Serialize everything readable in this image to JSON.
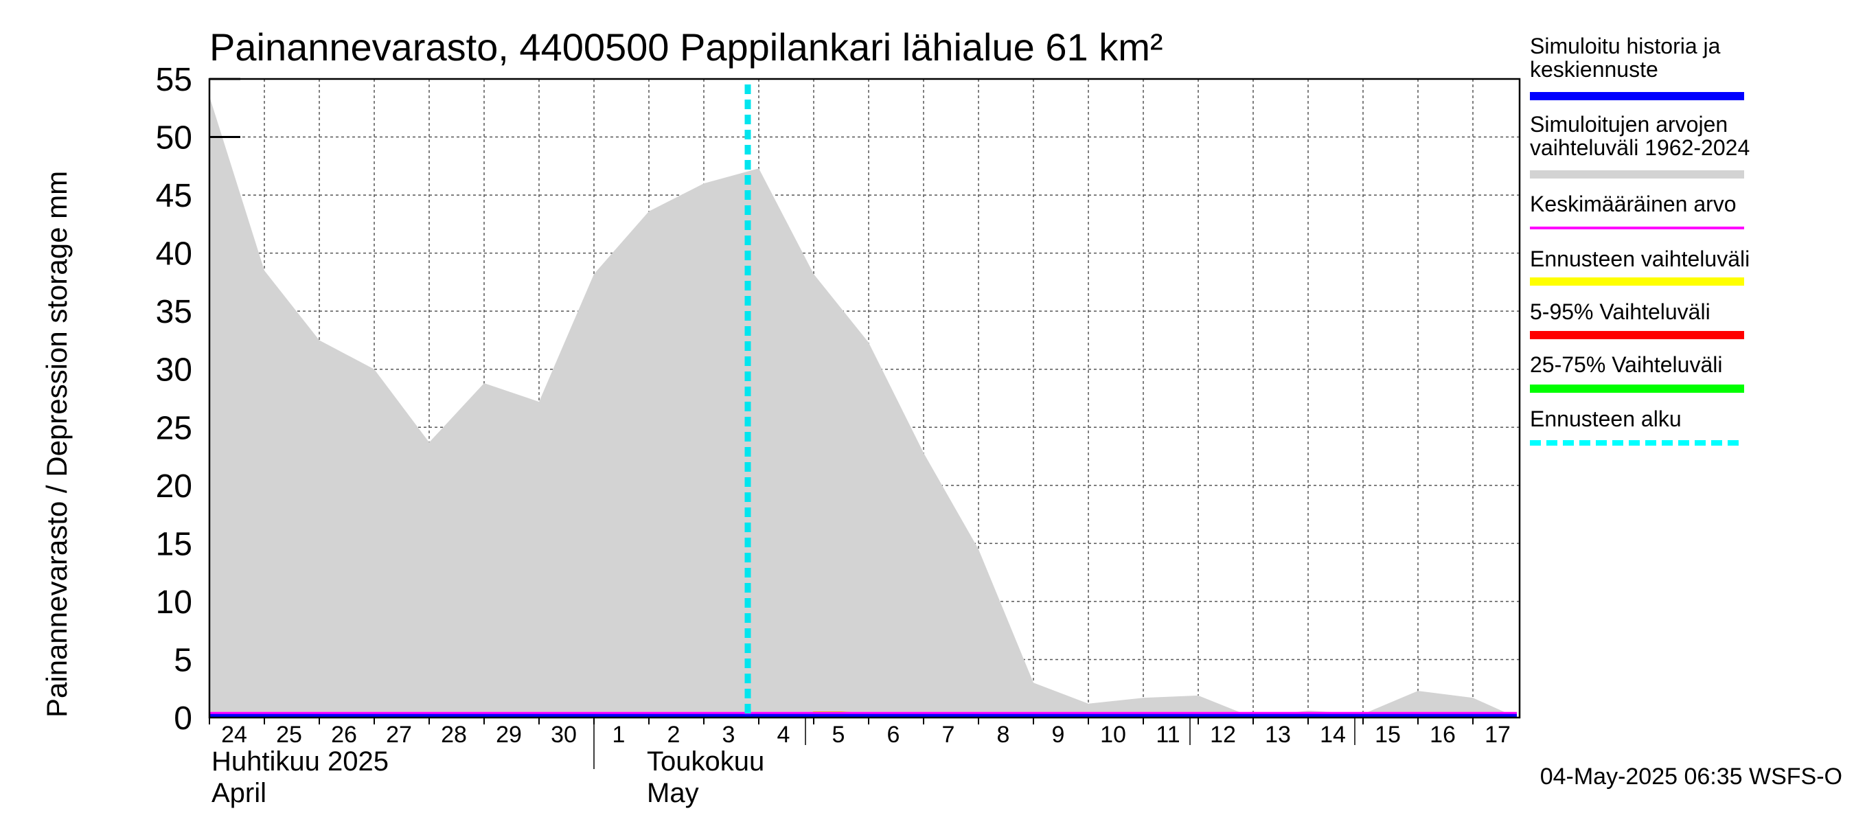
{
  "chart_data": {
    "type": "area",
    "title": "Painannevarasto, 4400500 Pappilankari lähialue 61 km²",
    "ylabel": "Painannevarasto / Depression storage    mm",
    "ylim": [
      0,
      55
    ],
    "yticks": [
      0,
      5,
      10,
      15,
      20,
      25,
      30,
      35,
      40,
      45,
      50,
      55
    ],
    "x_days": [
      "24",
      "25",
      "26",
      "27",
      "28",
      "29",
      "30",
      "1",
      "2",
      "3",
      "4",
      "5",
      "6",
      "7",
      "8",
      "9",
      "10",
      "11",
      "12",
      "13",
      "14",
      "15",
      "16",
      "17"
    ],
    "month_labels": [
      {
        "fi": "Huhtikuu  2025",
        "en": "April"
      },
      {
        "fi": "Toukokuu",
        "en": "May"
      }
    ],
    "forecast_start_day_index": 9.8,
    "series": [
      {
        "name": "Simuloitujen arvojen vaihteluväli 1962-2024",
        "kind": "range-upper",
        "x": [
          0,
          1,
          2,
          3,
          4,
          5,
          6,
          7,
          8,
          9,
          10,
          11,
          12,
          13,
          14,
          15,
          16,
          17,
          18,
          19,
          20,
          21,
          22,
          23,
          23.8
        ],
        "values": [
          53.5,
          38.5,
          32.5,
          30,
          23.7,
          28.8,
          27.2,
          38.2,
          43.6,
          46,
          47.3,
          38.2,
          32.3,
          22.8,
          14.5,
          3,
          1.2,
          1.7,
          1.9,
          0,
          0.6,
          0.3,
          2.3,
          1.7,
          0
        ]
      },
      {
        "name": "Ennusteen vaihteluväli",
        "kind": "forecast-band",
        "x": [
          10.8,
          11.0,
          11.5,
          12.0,
          12.5,
          13.0
        ],
        "values": [
          0.1,
          0.5,
          0.5,
          0.35,
          0.2,
          0.05
        ]
      },
      {
        "name": "Simuloitu historia ja keskiennuste",
        "kind": "line",
        "x": [
          0,
          23.8
        ],
        "values": [
          0,
          0
        ]
      },
      {
        "name": "Keskimääräinen arvo",
        "kind": "line",
        "x": [
          0,
          23.8
        ],
        "values": [
          0.1,
          0.1
        ]
      }
    ],
    "legend": [
      {
        "label": "Simuloitu historia ja keskiennuste",
        "color": "#0000ff",
        "style": "solid"
      },
      {
        "label": "Simuloitujen arvojen vaihteluväli 1962-2024",
        "color": "#d3d3d3",
        "style": "solid"
      },
      {
        "label": "Keskimääräinen arvo",
        "color": "#ff00ff",
        "style": "solid"
      },
      {
        "label": "Ennusteen vaihteluväli",
        "color": "#ffff00",
        "style": "solid"
      },
      {
        "label": "5-95% Vaihteluväli",
        "color": "#ff0000",
        "style": "solid"
      },
      {
        "label": "25-75% Vaihteluväli",
        "color": "#00ff00",
        "style": "solid"
      },
      {
        "label": "Ennusteen alku",
        "color": "#00ffff",
        "style": "dashed"
      }
    ],
    "footer": "04-May-2025 06:35 WSFS-O"
  }
}
